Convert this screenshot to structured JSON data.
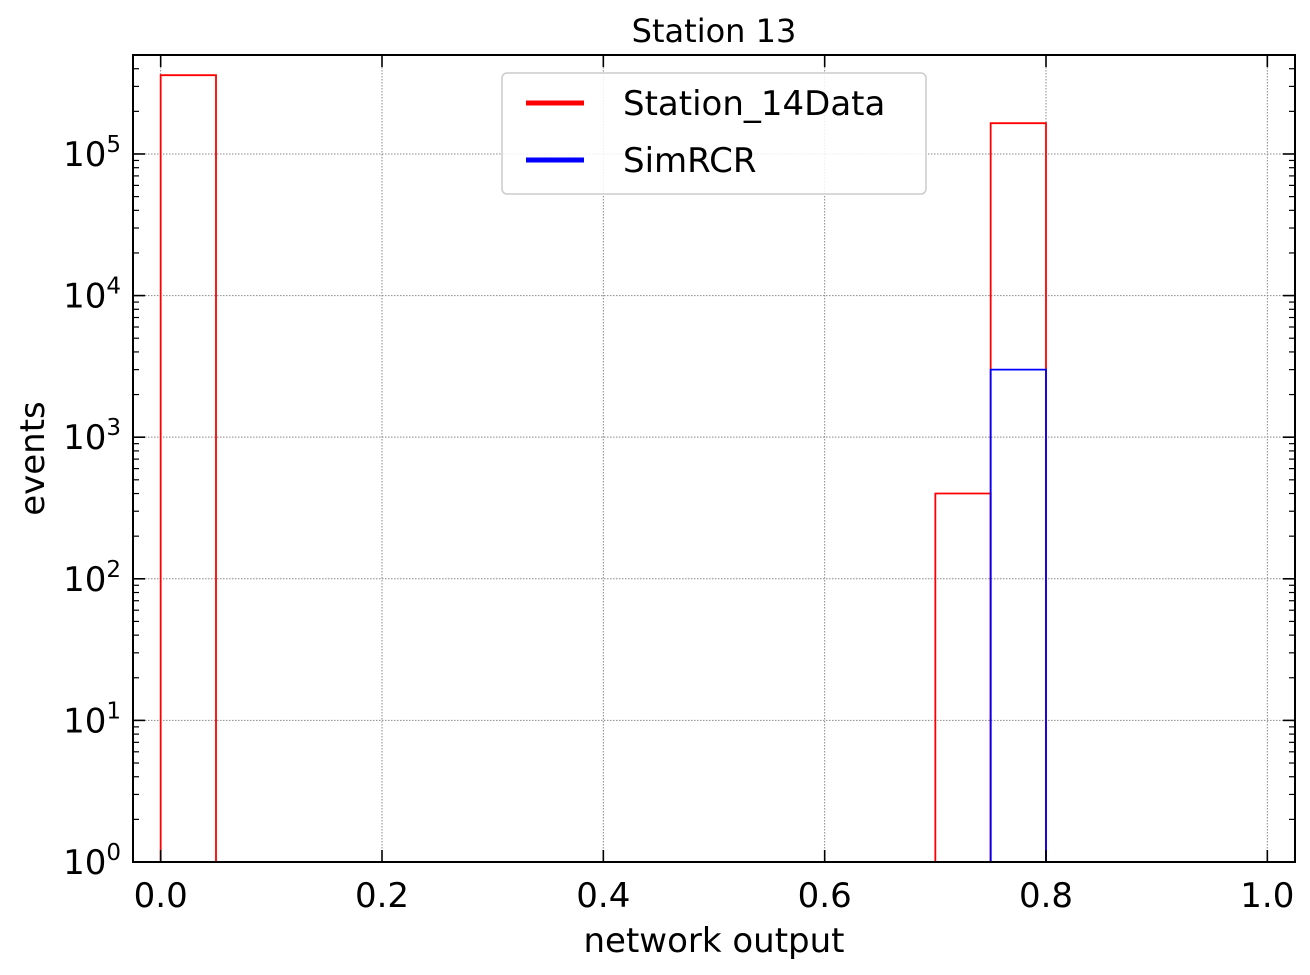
{
  "chart_data": {
    "type": "histogram",
    "title": "Station 13",
    "xlabel": "network output",
    "ylabel": "events",
    "xlim": [
      -0.025,
      1.025
    ],
    "ylim": [
      1,
      500000
    ],
    "yscale": "log",
    "grid": true,
    "legend_position": "top-center",
    "x_ticks": [
      0.0,
      0.2,
      0.4,
      0.6,
      0.8,
      1.0
    ],
    "x_tick_labels": [
      "0.0",
      "0.2",
      "0.4",
      "0.6",
      "0.8",
      "1.0"
    ],
    "y_ticks": [
      1,
      10,
      100,
      1000,
      10000,
      100000
    ],
    "y_tick_base": "10",
    "y_tick_exponents": [
      "0",
      "1",
      "2",
      "3",
      "4",
      "5"
    ],
    "bin_width": 0.05,
    "series": [
      {
        "name": "Station_14Data",
        "color": "#ff0000",
        "bins": [
          {
            "x0": 0.0,
            "x1": 0.05,
            "value": 360000
          },
          {
            "x0": 0.7,
            "x1": 0.75,
            "value": 400
          },
          {
            "x0": 0.75,
            "x1": 0.8,
            "value": 165000
          }
        ]
      },
      {
        "name": "SimRCR",
        "color": "#0000ff",
        "bins": [
          {
            "x0": 0.75,
            "x1": 0.8,
            "value": 3000
          }
        ]
      }
    ]
  }
}
